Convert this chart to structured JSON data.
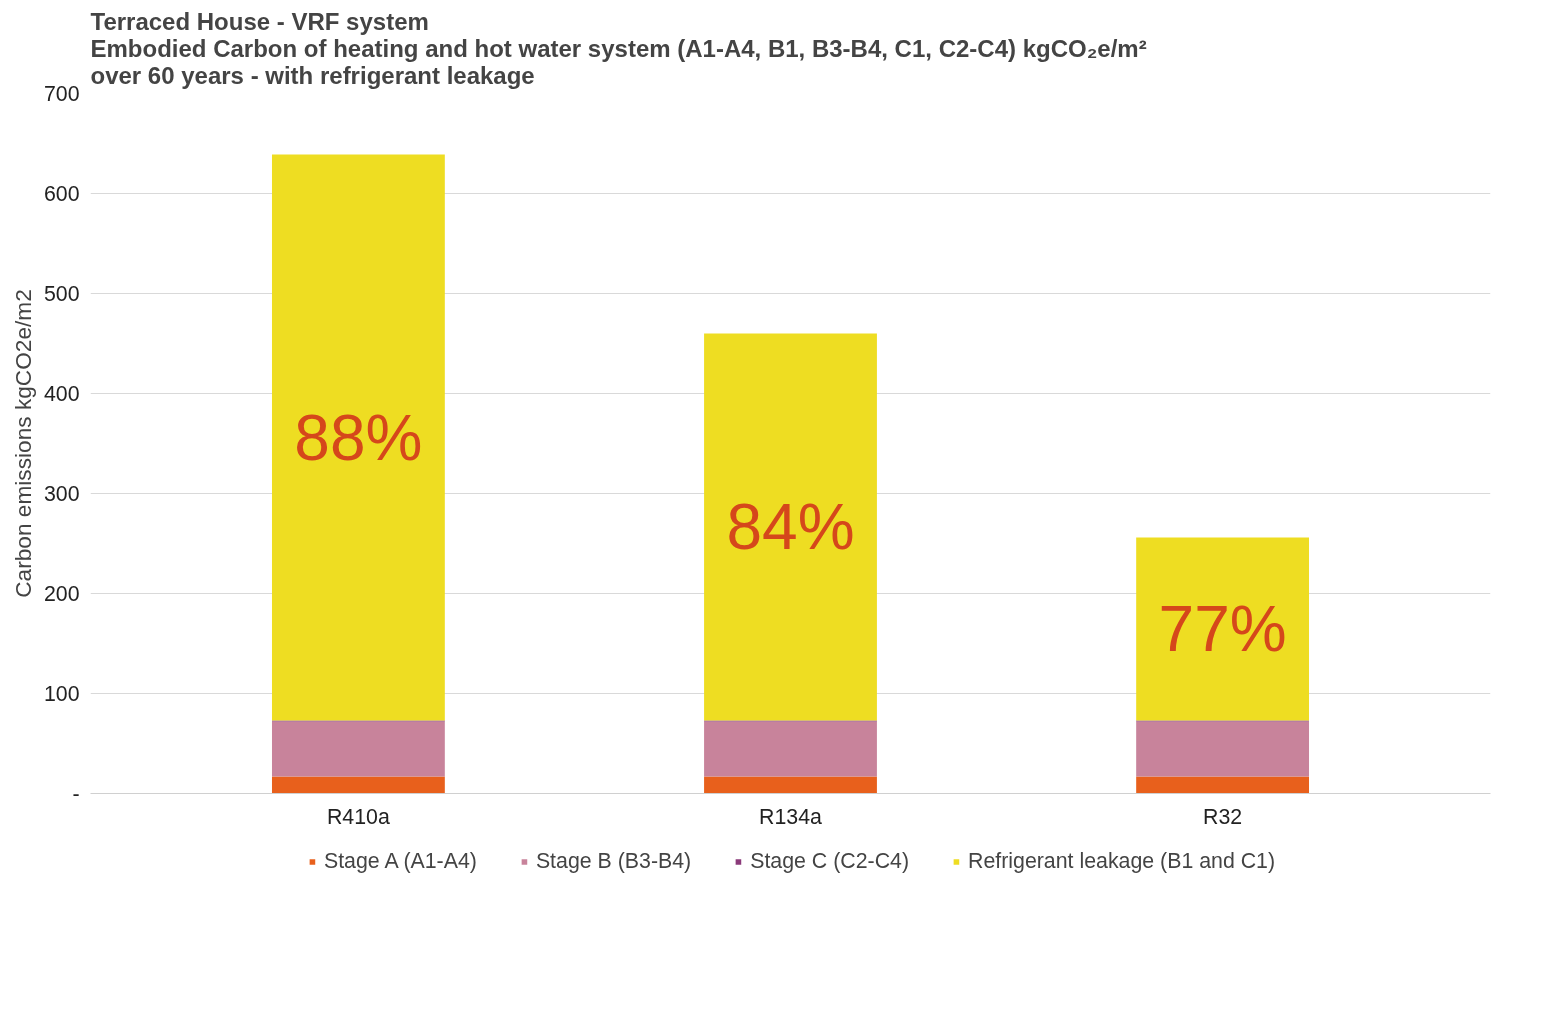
{
  "chart_data": {
    "type": "bar",
    "stacked": true,
    "title": "Terraced House - VRF system\nEmbodied Carbon of  heating and hot water system (A1-A4, B1, B3-B4, C1, C2-C4)  kgCO₂e/m²\nover 60 years - with refrigerant leakage",
    "ylabel": "Carbon emissions kgCO2e/m2",
    "categories": [
      "R410a",
      "R134a",
      "R32"
    ],
    "series": [
      {
        "name": "Stage A (A1-A4)",
        "color": "#e8601c",
        "values": [
          17,
          17,
          17
        ]
      },
      {
        "name": "Stage B (B3-B4)",
        "color": "#c8839b",
        "values": [
          55,
          55,
          55
        ]
      },
      {
        "name": "Stage C (C2-C4)",
        "color": "#8b3a7a",
        "values": [
          1,
          1,
          1
        ]
      },
      {
        "name": "Refrigerant leakage (B1 and C1)",
        "color": "#eedd22",
        "values": [
          566,
          387,
          183
        ]
      }
    ],
    "ylim": [
      0,
      700
    ],
    "yticks": [
      {
        "value": 0,
        "label": "-"
      },
      100,
      200,
      300,
      400,
      500,
      600,
      700
    ],
    "grid": "y",
    "legend": "bottom",
    "annotations": [
      "88%",
      "84%",
      "77%"
    ]
  }
}
